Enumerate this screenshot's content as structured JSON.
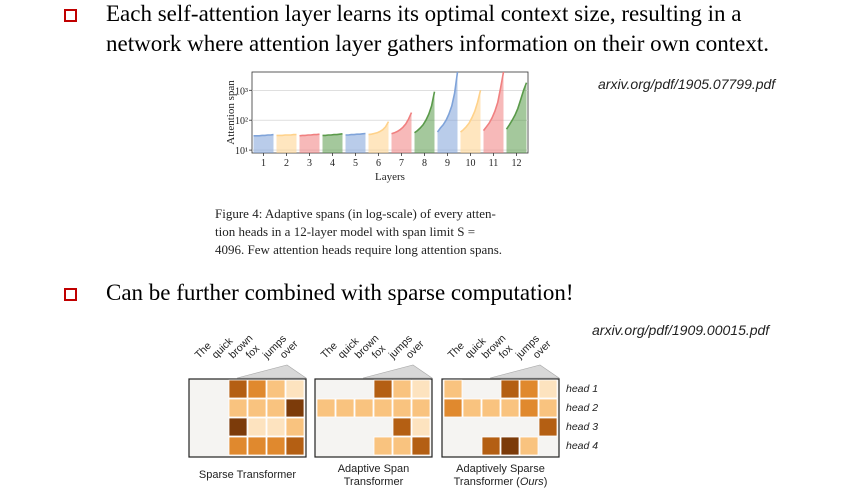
{
  "bullets": [
    {
      "line1": "Each self-attention layer learns its optimal context size, resulting in a",
      "line2": "network where attention layer gathers information on their own context."
    },
    {
      "line1": "Can be further combined with sparse computation!"
    }
  ],
  "links": {
    "first": "arxiv.org/pdf/1905.07799.pdf",
    "second": "arxiv.org/pdf/1909.00015.pdf"
  },
  "figure4": {
    "caption_lines": [
      "Figure 4: Adaptive spans (in log-scale) of every atten-",
      "tion heads in a 12-layer model with span limit S =",
      "4096. Few attention heads require long attention spans."
    ],
    "chart_data": {
      "type": "area",
      "xlabel": "Layers",
      "ylabel": "Attention span",
      "categories": [
        "1",
        "2",
        "3",
        "4",
        "5",
        "6",
        "7",
        "8",
        "9",
        "10",
        "11",
        "12"
      ],
      "ytick_labels": [
        "10¹",
        "10²",
        "10³"
      ],
      "log_scale": true,
      "ylim": [
        10,
        4096
      ],
      "layer_colors": [
        "#7fa3d9",
        "#ffd28a",
        "#f08080",
        "#5a9a4a"
      ],
      "layers": [
        {
          "layer": "1",
          "values": [
            30,
            30,
            30,
            31,
            31,
            32,
            32,
            33
          ]
        },
        {
          "layer": "2",
          "values": [
            31,
            31,
            31,
            32,
            32,
            32,
            33,
            33
          ]
        },
        {
          "layer": "3",
          "values": [
            30,
            31,
            31,
            32,
            32,
            33,
            33,
            34
          ]
        },
        {
          "layer": "4",
          "values": [
            31,
            31,
            32,
            32,
            33,
            33,
            34,
            35
          ]
        },
        {
          "layer": "5",
          "values": [
            32,
            32,
            33,
            33,
            34,
            34,
            35,
            36
          ]
        },
        {
          "layer": "6",
          "values": [
            33,
            34,
            36,
            38,
            42,
            48,
            60,
            90
          ]
        },
        {
          "layer": "7",
          "values": [
            35,
            38,
            42,
            48,
            58,
            75,
            110,
            180
          ]
        },
        {
          "layer": "8",
          "values": [
            38,
            45,
            55,
            70,
            100,
            160,
            300,
            900
          ]
        },
        {
          "layer": "9",
          "values": [
            40,
            55,
            70,
            100,
            160,
            300,
            800,
            4096
          ]
        },
        {
          "layer": "10",
          "values": [
            40,
            48,
            60,
            80,
            120,
            200,
            400,
            1000
          ]
        },
        {
          "layer": "11",
          "values": [
            45,
            60,
            80,
            120,
            200,
            400,
            1200,
            4096
          ]
        },
        {
          "layer": "12",
          "values": [
            50,
            70,
            100,
            150,
            250,
            500,
            1000,
            1800
          ]
        }
      ]
    }
  },
  "patterns": {
    "tokens": [
      "The",
      "quick",
      "brown",
      "fox",
      "jumps",
      "over"
    ],
    "heads": [
      "head 1",
      "head 2",
      "head 3",
      "head 4"
    ],
    "panels": [
      {
        "label_lines": [
          "Sparse Transformer"
        ],
        "ours": ""
      },
      {
        "label_lines": [
          "Adaptive Span",
          "Transformer"
        ],
        "ours": ""
      },
      {
        "label_lines": [
          "Adaptively Sparse",
          "Transformer (",
          ")"
        ],
        "ours": "Ours"
      }
    ],
    "colors": {
      "c0": "#f5f4f2",
      "c1": "#fde3bf",
      "c2": "#f9c37f",
      "c3": "#e0892e",
      "c4": "#b45f13",
      "c5": "#7c3b0a"
    },
    "grids": [
      [
        [
          "c0",
          "c4",
          "c3",
          "c2",
          "c1"
        ],
        [
          "c0",
          "c2",
          "c2",
          "c2",
          "c5"
        ],
        [
          "c0",
          "c5",
          "c1",
          "c1",
          "c2"
        ],
        [
          "c0",
          "c3",
          "c3",
          "c3",
          "c4"
        ]
      ],
      [
        [
          "c0",
          "c0",
          "c0",
          "c4",
          "c2",
          "c1"
        ],
        [
          "c2",
          "c2",
          "c2",
          "c2",
          "c2",
          "c2"
        ],
        [
          "c0",
          "c0",
          "c0",
          "c0",
          "c4",
          "c1"
        ],
        [
          "c0",
          "c0",
          "c0",
          "c2",
          "c2",
          "c4"
        ]
      ],
      [
        [
          "c2",
          "c0",
          "c0",
          "c4",
          "c3",
          "c1"
        ],
        [
          "c3",
          "c2",
          "c2",
          "c2",
          "c3",
          "c2"
        ],
        [
          "c0",
          "c0",
          "c0",
          "c0",
          "c0",
          "c4"
        ],
        [
          "c0",
          "c0",
          "c4",
          "c5",
          "c2",
          "c0"
        ]
      ]
    ]
  }
}
